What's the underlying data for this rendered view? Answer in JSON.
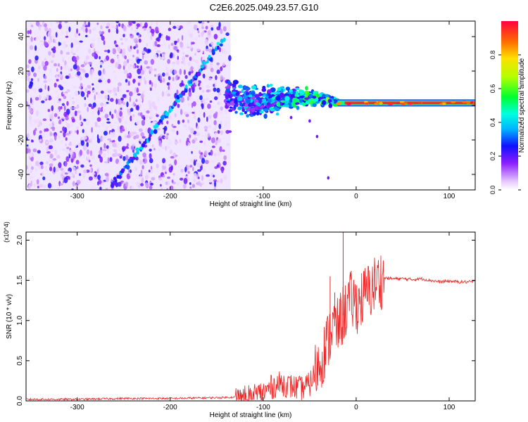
{
  "title": "C2E6.2025.049.23.57.G10",
  "chart_data": [
    {
      "type": "heatmap",
      "xlabel": "Height of straight line (km)",
      "ylabel": "Frequency (Hz)",
      "xlim": [
        -355,
        128
      ],
      "ylim": [
        -49,
        49
      ],
      "xticks": [
        -300,
        -200,
        -100,
        0,
        100
      ],
      "yticks": [
        -40,
        -20,
        0,
        20,
        40
      ],
      "colorbar": {
        "label": "Normalized spectral amplitude",
        "range": [
          0,
          1
        ],
        "ticks": [
          0.0,
          0.2,
          0.4,
          0.6,
          0.8
        ],
        "tick_labels": [
          "0.0",
          "0.2",
          "0.4",
          "0.6",
          "0.8"
        ]
      },
      "features": [
        {
          "name": "diagonal streak",
          "from": [
            -262,
            -46
          ],
          "to": [
            -143,
            38
          ],
          "amplitude": 0.3
        },
        {
          "name": "noise region",
          "x_range": [
            -355,
            -135
          ],
          "y_range": [
            -49,
            49
          ],
          "amplitude": 0.2
        },
        {
          "name": "converging signal",
          "x_range": [
            -140,
            -20
          ],
          "y_range": [
            -12,
            12
          ],
          "amplitude": 0.45
        },
        {
          "name": "carrier line",
          "x_range": [
            -20,
            128
          ],
          "frequency": 1.5,
          "amplitude": 0.95
        }
      ]
    },
    {
      "type": "line",
      "xlabel": "Height of straight line (km)",
      "ylabel": "SNR (10 * v/v)",
      "y_multiplier": "(x10^4)",
      "xlim": [
        -355,
        128
      ],
      "ylim": [
        0,
        2.1
      ],
      "xticks": [
        -300,
        -200,
        -100,
        0,
        100
      ],
      "yticks": [
        0.0,
        0.5,
        1.0,
        1.5,
        2.0
      ],
      "ytick_labels": [
        "0.0",
        "0.5",
        "1.0",
        "1.5",
        "2.0"
      ],
      "color": "#ee2222",
      "series": [
        {
          "name": "SNR",
          "x": [
            -355,
            -300,
            -250,
            -200,
            -150,
            -120,
            -100,
            -90,
            -80,
            -70,
            -60,
            -50,
            -45,
            -40,
            -35,
            -30,
            -25,
            -20,
            -15,
            -12,
            -10,
            -5,
            0,
            5,
            10,
            15,
            20,
            25,
            30,
            40,
            50,
            60,
            70,
            80,
            90,
            100,
            110,
            128
          ],
          "y": [
            0.02,
            0.02,
            0.03,
            0.03,
            0.04,
            0.05,
            0.1,
            0.18,
            0.22,
            0.18,
            0.15,
            0.2,
            0.35,
            0.45,
            0.6,
            0.75,
            0.95,
            0.9,
            1.05,
            1.1,
            1.2,
            1.25,
            1.2,
            1.25,
            1.32,
            1.38,
            1.45,
            1.5,
            1.53,
            1.52,
            1.52,
            1.51,
            1.52,
            1.5,
            1.48,
            1.49,
            1.48,
            1.48
          ]
        }
      ],
      "peaks": [
        {
          "x": -14,
          "y": 2.1
        },
        {
          "x": -28,
          "y": 1.55
        },
        {
          "x": 8,
          "y": 1.58
        },
        {
          "x": -23,
          "y": 1.35
        }
      ]
    }
  ]
}
